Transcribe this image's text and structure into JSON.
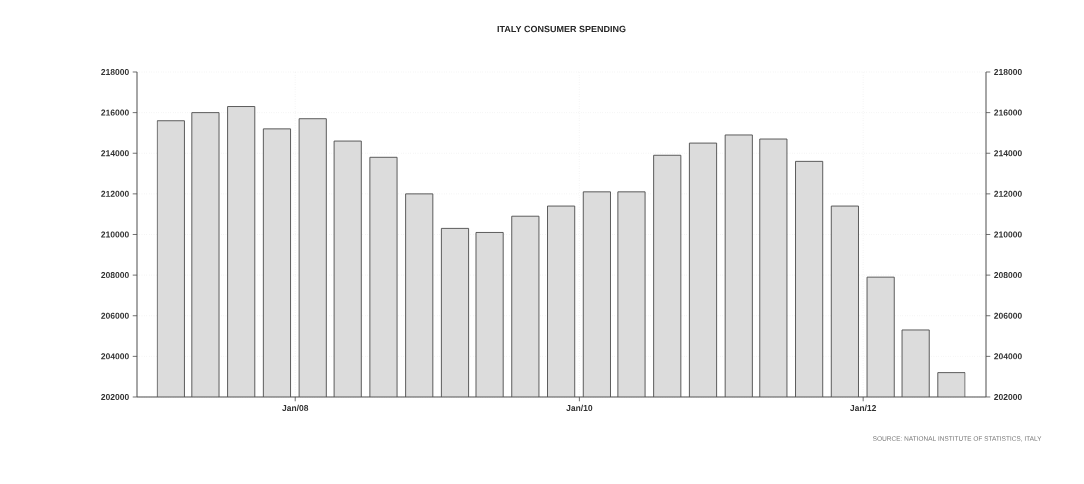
{
  "chart_data": {
    "type": "bar",
    "title": "ITALY CONSUMER SPENDING",
    "x": [
      "2007-02-15",
      "2007-05-15",
      "2007-08-15",
      "2007-11-15",
      "2008-02-15",
      "2008-05-15",
      "2008-08-15",
      "2008-11-15",
      "2009-02-15",
      "2009-05-15",
      "2009-08-15",
      "2009-11-15",
      "2010-02-15",
      "2010-05-15",
      "2010-08-15",
      "2010-11-15",
      "2011-02-15",
      "2011-05-15",
      "2011-08-15",
      "2011-11-15",
      "2012-02-15",
      "2012-05-15",
      "2012-08-15"
    ],
    "values": [
      215600,
      216000,
      216300,
      215200,
      215700,
      214600,
      213800,
      212000,
      210300,
      210100,
      210900,
      211400,
      212100,
      212100,
      213900,
      214500,
      214900,
      214700,
      213600,
      211400,
      207900,
      205300,
      203200
    ],
    "color": "#dcdcdc",
    "xlim": [
      "2006-11-20",
      "2012-11-12"
    ],
    "xticks": [
      {
        "value": "2008-01-01",
        "label": "Jan/08"
      },
      {
        "value": "2010-01-01",
        "label": "Jan/10"
      },
      {
        "value": "2012-01-01",
        "label": "Jan/12"
      }
    ],
    "ylim": [
      202000,
      218000
    ],
    "yticks": [
      202000,
      204000,
      206000,
      208000,
      210000,
      212000,
      214000,
      216000,
      218000
    ],
    "y2lim": [
      202000,
      218000
    ],
    "y2ticks": [
      202000,
      204000,
      206000,
      208000,
      210000,
      212000,
      214000,
      216000,
      218000
    ],
    "grid": true,
    "annotations": [
      "SOURCE: NATIONAL INSTITUTE OF STATISTICS, ITALY"
    ]
  }
}
